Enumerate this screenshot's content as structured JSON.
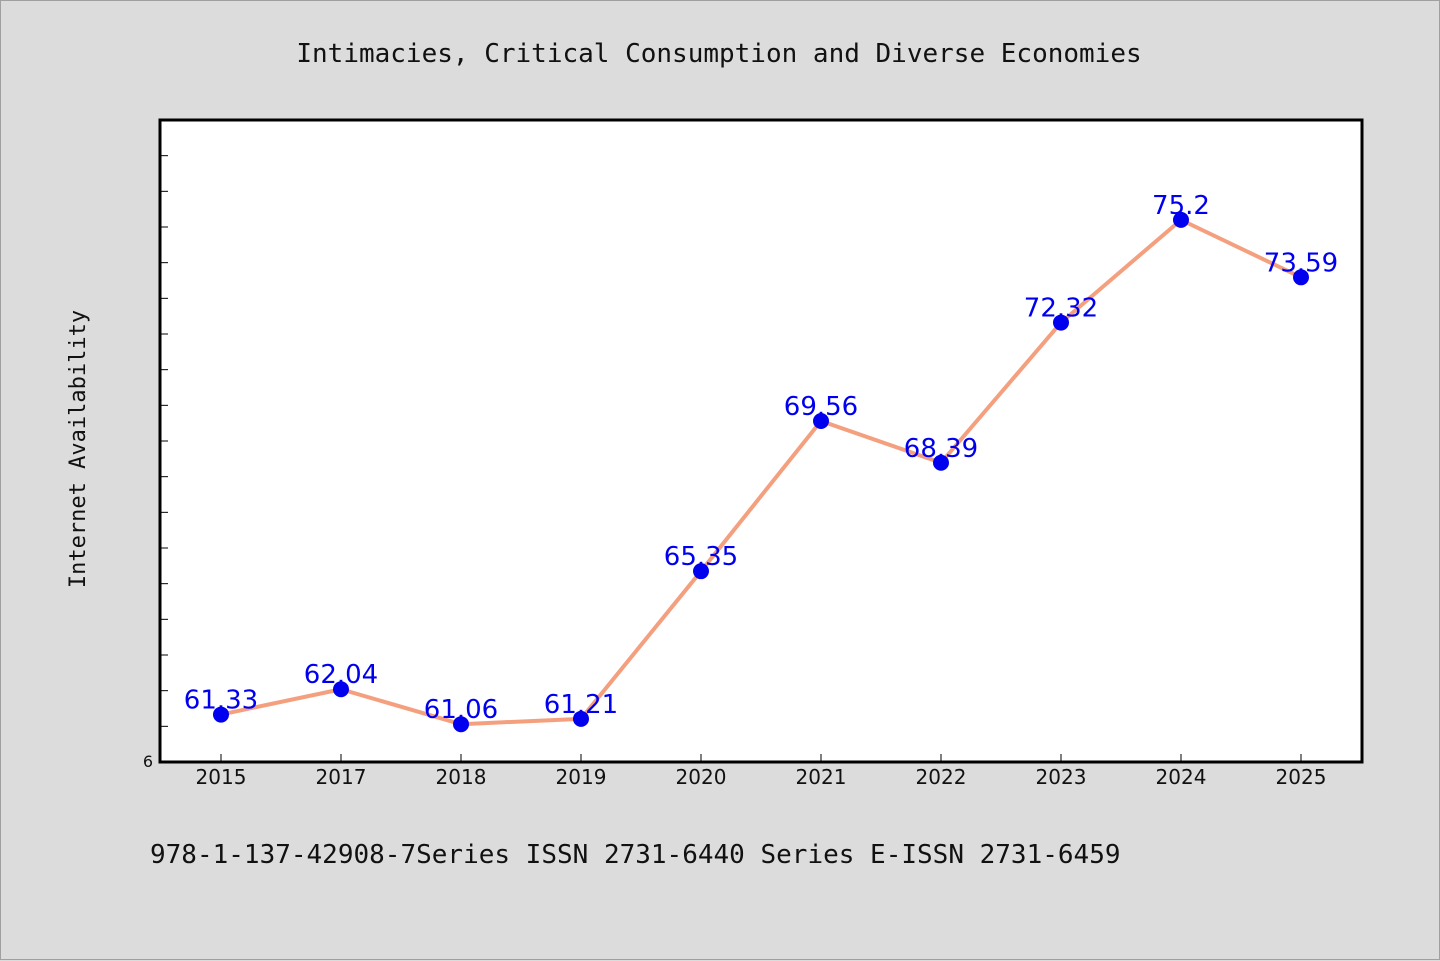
{
  "chart_data": {
    "type": "line",
    "title": "Intimacies, Critical Consumption and Diverse Economies",
    "ylabel": "Internet Availability",
    "xlabel": "",
    "x": [
      "2015",
      "2017",
      "2018",
      "2019",
      "2020",
      "2021",
      "2022",
      "2023",
      "2024",
      "2025"
    ],
    "series": [
      {
        "values": [
          61.33,
          62.04,
          61.06,
          61.21,
          65.35,
          69.56,
          68.39,
          72.32,
          75.2,
          73.59
        ]
      }
    ],
    "y_tick_labels": [
      "6"
    ],
    "ylim": [
      60,
      78
    ],
    "line_color": "#f4a07f",
    "marker_color": "#0000ee",
    "label_color": "#0000ee",
    "grid": false,
    "legend": "none"
  },
  "footer": "978-1-137-42908-7Series ISSN 2731-6440 Series E-ISSN 2731-6459"
}
